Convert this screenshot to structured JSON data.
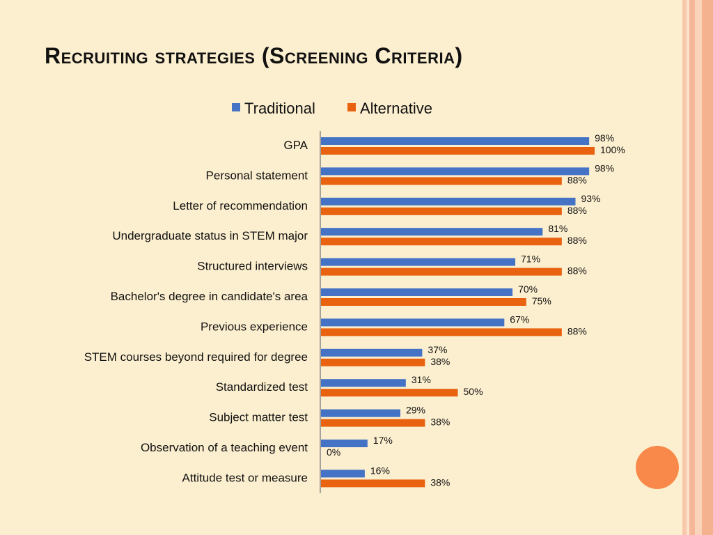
{
  "slide": {
    "title": "Recruiting strategies (Screening Criteria)"
  },
  "colors": {
    "background": "#fcefcf",
    "traditional": "#4472c4",
    "alternative": "#e8620f",
    "accent_circle": "#f9894a"
  },
  "chart_data": {
    "type": "bar",
    "orientation": "horizontal",
    "title": "",
    "xlabel": "",
    "ylabel": "",
    "legend_position": "top",
    "grid": false,
    "xlim": [
      0,
      100
    ],
    "categories": [
      "GPA",
      "Personal statement",
      "Letter of recommendation",
      "Undergraduate status in STEM major",
      "Structured interviews",
      "Bachelor's degree in candidate's area",
      "Previous experience",
      "STEM courses beyond required for degree",
      "Standardized test",
      "Subject matter test",
      "Observation of a teaching event",
      "Attitude test or measure"
    ],
    "series": [
      {
        "name": "Traditional",
        "color": "#4472c4",
        "values": [
          98,
          98,
          93,
          81,
          71,
          70,
          67,
          37,
          31,
          29,
          17,
          16
        ]
      },
      {
        "name": "Alternative",
        "color": "#e8620f",
        "values": [
          100,
          88,
          88,
          88,
          88,
          75,
          88,
          38,
          50,
          38,
          0,
          38
        ]
      }
    ],
    "value_suffix": "%"
  }
}
